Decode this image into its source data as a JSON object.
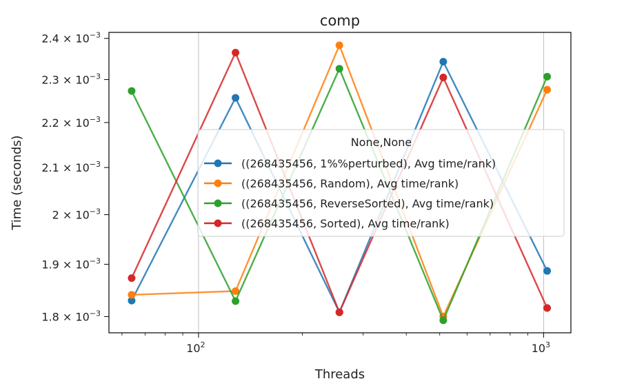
{
  "chart_data": {
    "type": "line",
    "title": "comp",
    "xlabel": "Threads",
    "ylabel": "Time (seconds)",
    "x": [
      64,
      128,
      256,
      512,
      1024
    ],
    "x_scale": "log",
    "y_scale": "log",
    "xlim": [
      55,
      1200
    ],
    "ylim": [
      0.00177,
      0.002415
    ],
    "grid": "x-major",
    "x_ticks": [
      {
        "value": 100,
        "base": "10",
        "exp": "2"
      },
      {
        "value": 1000,
        "base": "10",
        "exp": "3"
      }
    ],
    "y_ticks": [
      {
        "value": 0.0018,
        "mant": "1.8",
        "exp": "−3"
      },
      {
        "value": 0.0019,
        "mant": "1.9",
        "exp": "−3"
      },
      {
        "value": 0.002,
        "mant": "2",
        "exp": "−3"
      },
      {
        "value": 0.0021,
        "mant": "2.1",
        "exp": "−3"
      },
      {
        "value": 0.0022,
        "mant": "2.2",
        "exp": "−3"
      },
      {
        "value": 0.0023,
        "mant": "2.3",
        "exp": "−3"
      },
      {
        "value": 0.0024,
        "mant": "2.4",
        "exp": "−3"
      }
    ],
    "legend": {
      "title": "None,None",
      "placement": "center-right"
    },
    "series": [
      {
        "name": "((268435456, 1%%perturbed), Avg time/rank)",
        "color": "#1f77b4",
        "values": [
          0.00183,
          0.002257,
          0.001808,
          0.002343,
          0.001887
        ]
      },
      {
        "name": "((268435456, Random), Avg time/rank)",
        "color": "#ff7f0e",
        "values": [
          0.001841,
          0.001848,
          0.002383,
          0.0018,
          0.002276
        ]
      },
      {
        "name": "((268435456, ReverseSorted), Avg time/rank)",
        "color": "#2ca02c",
        "values": [
          0.002273,
          0.001829,
          0.002326,
          0.001793,
          0.002307
        ]
      },
      {
        "name": "((268435456, Sorted), Avg time/rank)",
        "color": "#d62728",
        "values": [
          0.001873,
          0.002365,
          0.001808,
          0.002305,
          0.001816
        ]
      }
    ]
  }
}
